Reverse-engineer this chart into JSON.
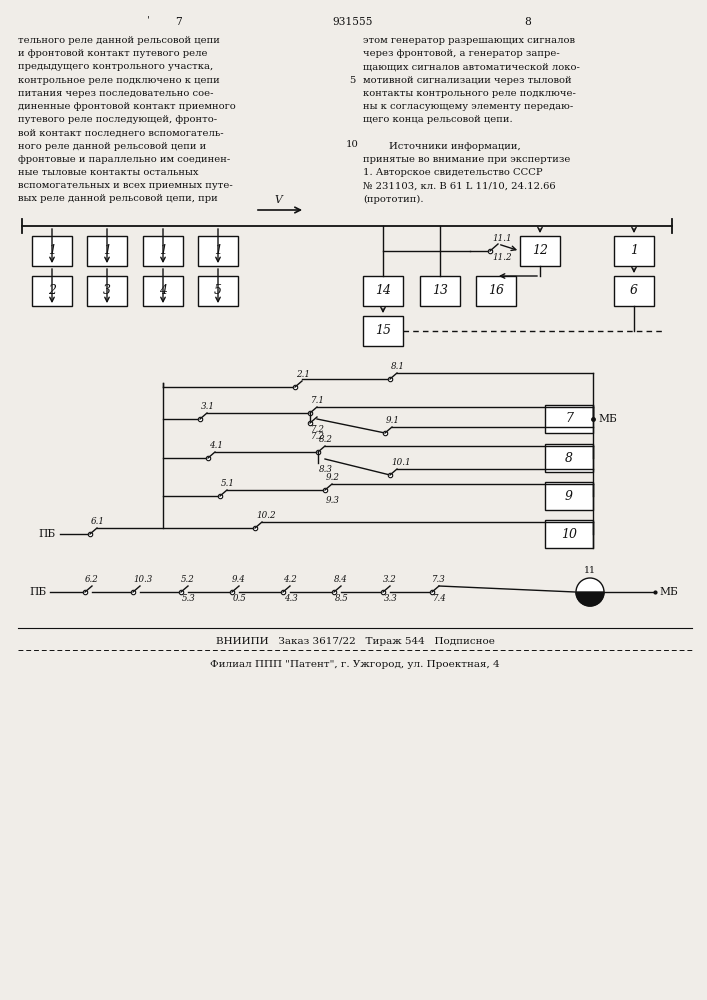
{
  "bg_color": "#f0ede8",
  "text_color": "#111111",
  "page_number_left": "7",
  "page_number_center": "931555",
  "page_number_right": "8",
  "left_text": [
    "тельного реле данной рельсовой цепи",
    "и фронтовой контакт путевого реле",
    "предыдущего контрольного участка,",
    "контрольное реле подключено к цепи",
    "питания через последовательно сое-",
    "диненные фронтовой контакт приемного",
    "путевого реле последующей, фронто-",
    "вой контакт последнего вспомогатель-",
    "ного реле данной рельсовой цепи и",
    "фронтовые и параллельно им соединен-",
    "ные тыловые контакты остальных",
    "вспомогательных и всех приемных путе-",
    "вых реле данной рельсовой цепи, при"
  ],
  "right_text": [
    "этом генератор разрешающих сигналов",
    "через фронтовой, а генератор запре-",
    "щающих сигналов автоматической локо-",
    "мотивной сигнализации через тыловой",
    "контакты контрольного реле подключе-",
    "ны к согласующему элементу передаю-",
    "щего конца рельсовой цепи."
  ],
  "sources_header": "Источники информации,",
  "sources_text": [
    "принятые во внимание при экспертизе",
    "1. Авторское свидетельство СССР",
    "№ 231103, кл. B 61 L 11/10, 24.12.66",
    "(прототип)."
  ],
  "bottom_text": "ВНИИПИ   Заказ 3617/22   Тираж 544   Подписное",
  "bottom_text2": "Филиал ППП \"Патент\", г. Ужгород, ул. Проектная, 4"
}
